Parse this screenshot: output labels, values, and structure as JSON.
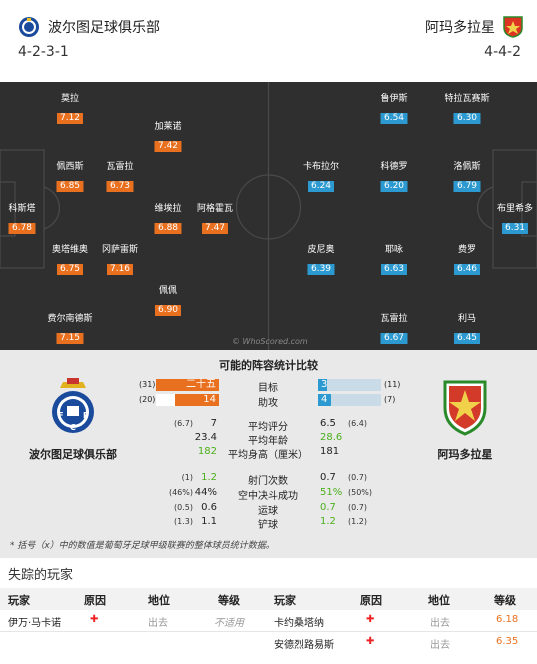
{
  "home": {
    "name": "波尔图足球俱乐部",
    "formation": "4-2-3-1",
    "players": [
      {
        "name": "莫拉",
        "rating": "7.12"
      },
      {
        "name": "加莱诺",
        "rating": "7.42"
      },
      {
        "name": "佩西斯",
        "rating": "6.85"
      },
      {
        "name": "瓦雷拉",
        "rating": "6.73"
      },
      {
        "name": "科斯塔",
        "rating": "6.78"
      },
      {
        "name": "维埃拉",
        "rating": "6.88"
      },
      {
        "name": "阿格霍瓦",
        "rating": "7.47"
      },
      {
        "name": "奥塔维奥",
        "rating": "6.75"
      },
      {
        "name": "冈萨雷斯",
        "rating": "7.16"
      },
      {
        "name": "佩佩",
        "rating": "6.90"
      },
      {
        "name": "费尔南德斯",
        "rating": "7.15"
      }
    ]
  },
  "away": {
    "name": "阿玛多拉星",
    "formation": "4-4-2",
    "players": [
      {
        "name": "鲁伊斯",
        "rating": "6.54"
      },
      {
        "name": "特拉瓦赛斯",
        "rating": "6.30"
      },
      {
        "name": "卡布拉尔",
        "rating": "6.24"
      },
      {
        "name": "科德罗",
        "rating": "6.20"
      },
      {
        "name": "洛佩斯",
        "rating": "6.79"
      },
      {
        "name": "布里希多",
        "rating": "6.31"
      },
      {
        "name": "皮尼奥",
        "rating": "6.39"
      },
      {
        "name": "耶咏",
        "rating": "6.63"
      },
      {
        "name": "费罗",
        "rating": "6.46"
      },
      {
        "name": "瓦雷拉",
        "rating": "6.67"
      },
      {
        "name": "利马",
        "rating": "6.45"
      }
    ]
  },
  "watermark": "© WhoScored.com",
  "stats": {
    "title": "可能的阵容统计比较",
    "home_name": "波尔图足球俱乐部",
    "away_name": "阿玛多拉星",
    "bars": [
      {
        "label": "目标",
        "home": "二十五",
        "home_season": "(31)",
        "away": "3",
        "away_season": "(11)",
        "home_frac": 1.0,
        "away_frac": 0.15
      },
      {
        "label": "助攻",
        "home": "14",
        "home_season": "(20)",
        "away": "4",
        "away_season": "(7)",
        "home_frac": 0.7,
        "away_frac": 0.2
      }
    ],
    "rows1": [
      {
        "label": "平均评分",
        "home": "7",
        "home_season": "(6.7)",
        "away": "6.5",
        "away_season": "(6.4)",
        "home_green": false,
        "away_green": false
      },
      {
        "label": "平均年龄",
        "home": "23.4",
        "home_season": "",
        "away": "28.6",
        "away_season": "",
        "home_green": false,
        "away_green": true
      },
      {
        "label": "平均身高（厘米）",
        "home": "182",
        "home_season": "",
        "away": "181",
        "away_season": "",
        "home_green": true,
        "away_green": false
      }
    ],
    "rows2": [
      {
        "label": "射门次数",
        "home": "1.2",
        "home_season": "(1)",
        "away": "0.7",
        "away_season": "(0.7)",
        "home_green": true,
        "away_green": false
      },
      {
        "label": "空中决斗成功",
        "home": "44%",
        "home_season": "(46%)",
        "away": "51%",
        "away_season": "(50%)",
        "home_green": false,
        "away_green": true
      },
      {
        "label": "运球",
        "home": "0.6",
        "home_season": "(0.5)",
        "away": "0.7",
        "away_season": "(0.7)",
        "home_green": false,
        "away_green": true
      },
      {
        "label": "铲球",
        "home": "1.1",
        "home_season": "(1.3)",
        "away": "1.2",
        "away_season": "(1.2)",
        "home_green": false,
        "away_green": true
      }
    ],
    "footnote": "* 括号（x）中的数值是葡萄牙足球甲级联赛的整体球员统计数据。"
  },
  "missing": {
    "title": "失踪的玩家",
    "headers": {
      "player": "玩家",
      "reason": "原因",
      "status": "地位",
      "rating": "等级"
    },
    "home_rows": [
      {
        "player": "伊万·马卡诺",
        "status": "出去",
        "rating": "不适用"
      }
    ],
    "away_rows": [
      {
        "player": "卡约桑塔纳",
        "status": "出去",
        "rating": "6.18"
      },
      {
        "player": "安德烈路易斯",
        "status": "出去",
        "rating": "6.35"
      }
    ]
  }
}
